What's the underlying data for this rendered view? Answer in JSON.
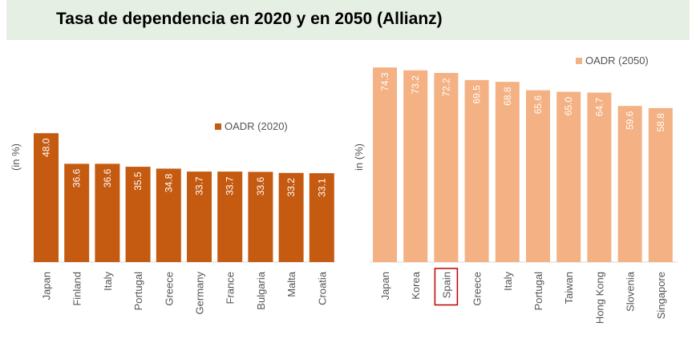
{
  "title": "Tasa de dependencia en 2020 y en 2050 (Allianz)",
  "chart_data": [
    {
      "type": "bar",
      "categories": [
        "Japan",
        "Finland",
        "Italy",
        "Portugal",
        "Greece",
        "Germany",
        "France",
        "Bulgaria",
        "Malta",
        "Croatia"
      ],
      "series": [
        {
          "name": "OADR (2020)",
          "values": [
            48.0,
            36.6,
            36.6,
            35.5,
            34.8,
            33.7,
            33.7,
            33.6,
            33.2,
            33.1
          ]
        }
      ],
      "value_labels": [
        "48.0",
        "36.6",
        "36.6",
        "35.5",
        "34.8",
        "33.7",
        "33.7",
        "33.6",
        "33.2",
        "33.1"
      ],
      "ylabel": "(in %)",
      "ylim": [
        0,
        80
      ],
      "color": "#c55a11",
      "legend": "top-right",
      "grid": false
    },
    {
      "type": "bar",
      "categories": [
        "Japan",
        "Korea",
        "Spain",
        "Greece",
        "Italy",
        "Portugal",
        "Taiwan",
        "Hong Kong",
        "Slovenia",
        "Singapore"
      ],
      "series": [
        {
          "name": "OADR (2050)",
          "values": [
            74.3,
            73.2,
            72.2,
            69.5,
            68.8,
            65.6,
            65.0,
            64.7,
            59.6,
            58.8
          ]
        }
      ],
      "value_labels": [
        "74.3",
        "73.2",
        "72.2",
        "69.5",
        "68.8",
        "65.6",
        "65.0",
        "64.7",
        "59.6",
        "58.8"
      ],
      "ylabel": "in (%)",
      "ylim": [
        0,
        82
      ],
      "color": "#f4b183",
      "legend": "top-right",
      "grid": false,
      "highlight_category": "Spain",
      "highlight_color": "#c00000"
    }
  ]
}
